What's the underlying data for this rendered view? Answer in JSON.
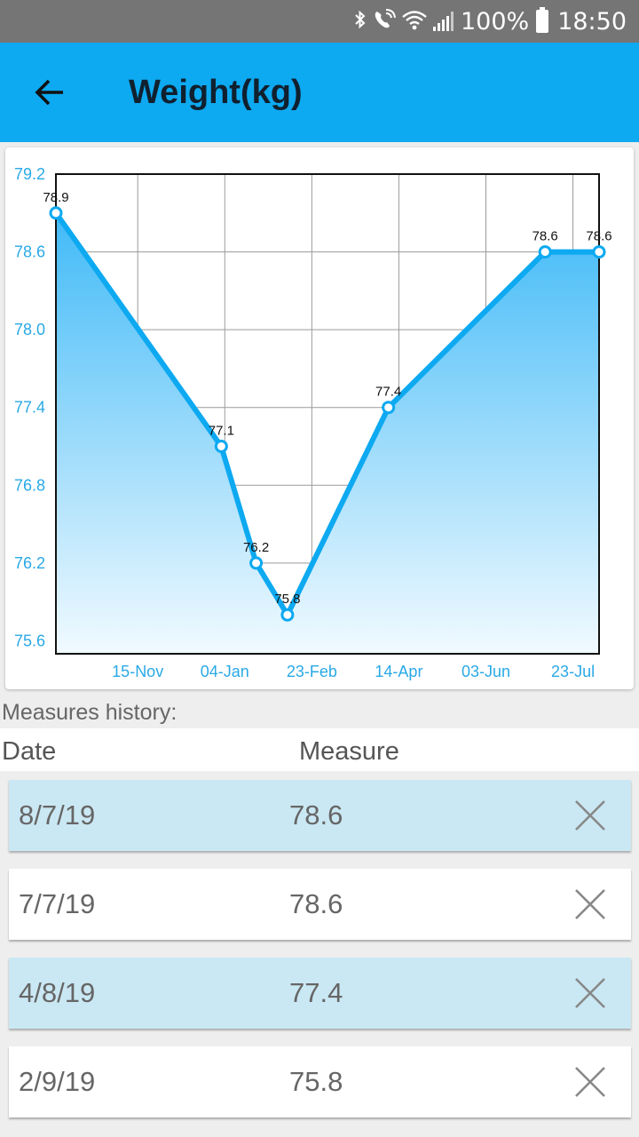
{
  "status_bar": {
    "battery_text": "100%",
    "time": "18:50",
    "icons": [
      "bluetooth-icon",
      "wifi-call-icon",
      "wifi-icon",
      "signal-icon",
      "battery-icon"
    ]
  },
  "app_bar": {
    "title": "Weight(kg)",
    "back_icon": "arrow-back-icon",
    "color": "#0da9f1"
  },
  "chart_data": {
    "type": "area",
    "x": [
      "2018-09-29",
      "2019-01-02",
      "2019-01-22",
      "2019-02-09",
      "2019-04-08",
      "2019-07-07",
      "2019-08-07"
    ],
    "values": [
      78.9,
      77.1,
      76.2,
      75.8,
      77.4,
      78.6,
      78.6
    ],
    "data_labels": [
      "78.9",
      "77.1",
      "76.2",
      "75.8",
      "77.4",
      "78.6",
      "78.6"
    ],
    "x_ticks": [
      "15-Nov",
      "04-Jan",
      "23-Feb",
      "14-Apr",
      "03-Jun",
      "23-Jul"
    ],
    "y_ticks": [
      "75.6",
      "76.2",
      "76.8",
      "77.4",
      "78.0",
      "78.6",
      "79.2"
    ],
    "ylim": [
      75.5,
      79.2
    ],
    "grid": true,
    "line_color": "#0da9f1",
    "fill_color": "#41baf7"
  },
  "history": {
    "section_label": "Measures history:",
    "columns": [
      "Date",
      "Measure"
    ],
    "rows": [
      {
        "date": "8/7/19",
        "measure": "78.6",
        "highlight": true
      },
      {
        "date": "7/7/19",
        "measure": "78.6",
        "highlight": false
      },
      {
        "date": "4/8/19",
        "measure": "77.4",
        "highlight": true
      },
      {
        "date": "2/9/19",
        "measure": "75.8",
        "highlight": false
      }
    ],
    "delete_icon": "close-icon",
    "highlight_color": "#cae8f3"
  }
}
